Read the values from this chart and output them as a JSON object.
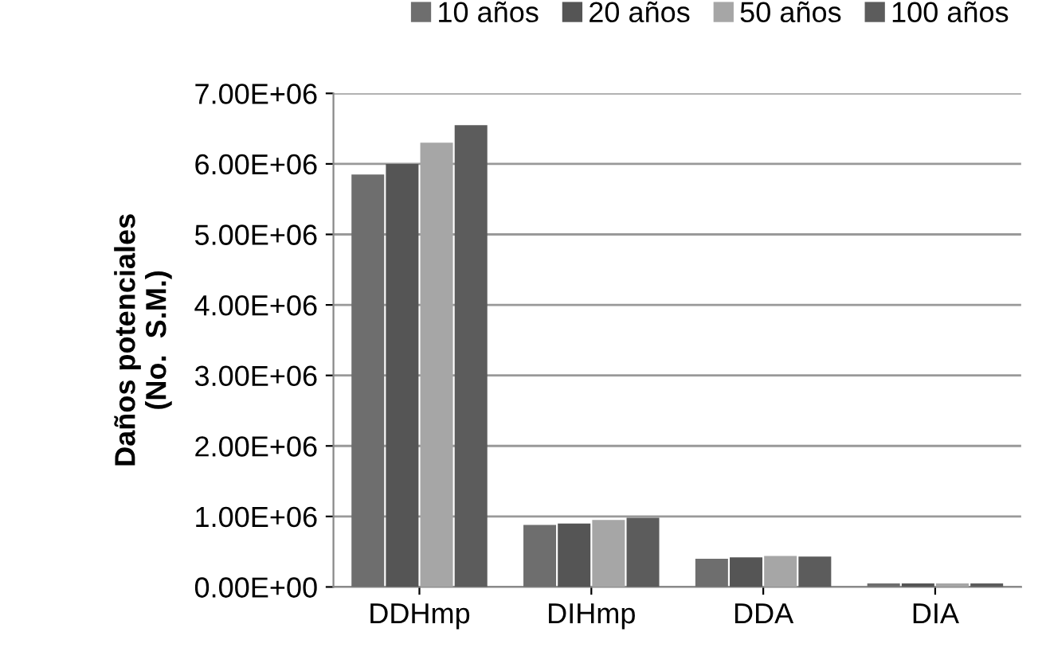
{
  "chart_data": {
    "type": "bar",
    "ylabel": "Daños potenciales\n(No.  S.M.)",
    "categories": [
      "DDHmp",
      "DIHmp",
      "DDA",
      "DIA"
    ],
    "series": [
      {
        "name": "10 años",
        "color": "#6e6e6e",
        "values": [
          5850000,
          880000,
          400000,
          50000
        ]
      },
      {
        "name": "20 años",
        "color": "#555555",
        "values": [
          6000000,
          900000,
          420000,
          50000
        ]
      },
      {
        "name": "50 años",
        "color": "#a6a6a6",
        "values": [
          6300000,
          950000,
          440000,
          50000
        ]
      },
      {
        "name": "100 años",
        "color": "#5c5c5c",
        "values": [
          6550000,
          980000,
          430000,
          50000
        ]
      }
    ],
    "ylim": [
      0,
      7000000
    ],
    "yticks": [
      {
        "value": 0,
        "label": "0.00E+00"
      },
      {
        "value": 1000000,
        "label": "1.00E+06"
      },
      {
        "value": 2000000,
        "label": "2.00E+06"
      },
      {
        "value": 3000000,
        "label": "3.00E+06"
      },
      {
        "value": 4000000,
        "label": "4.00E+06"
      },
      {
        "value": 5000000,
        "label": "5.00E+06"
      },
      {
        "value": 6000000,
        "label": "6.00E+06"
      },
      {
        "value": 7000000,
        "label": "7.00E+06"
      }
    ],
    "grid": "y",
    "legend": "top"
  }
}
